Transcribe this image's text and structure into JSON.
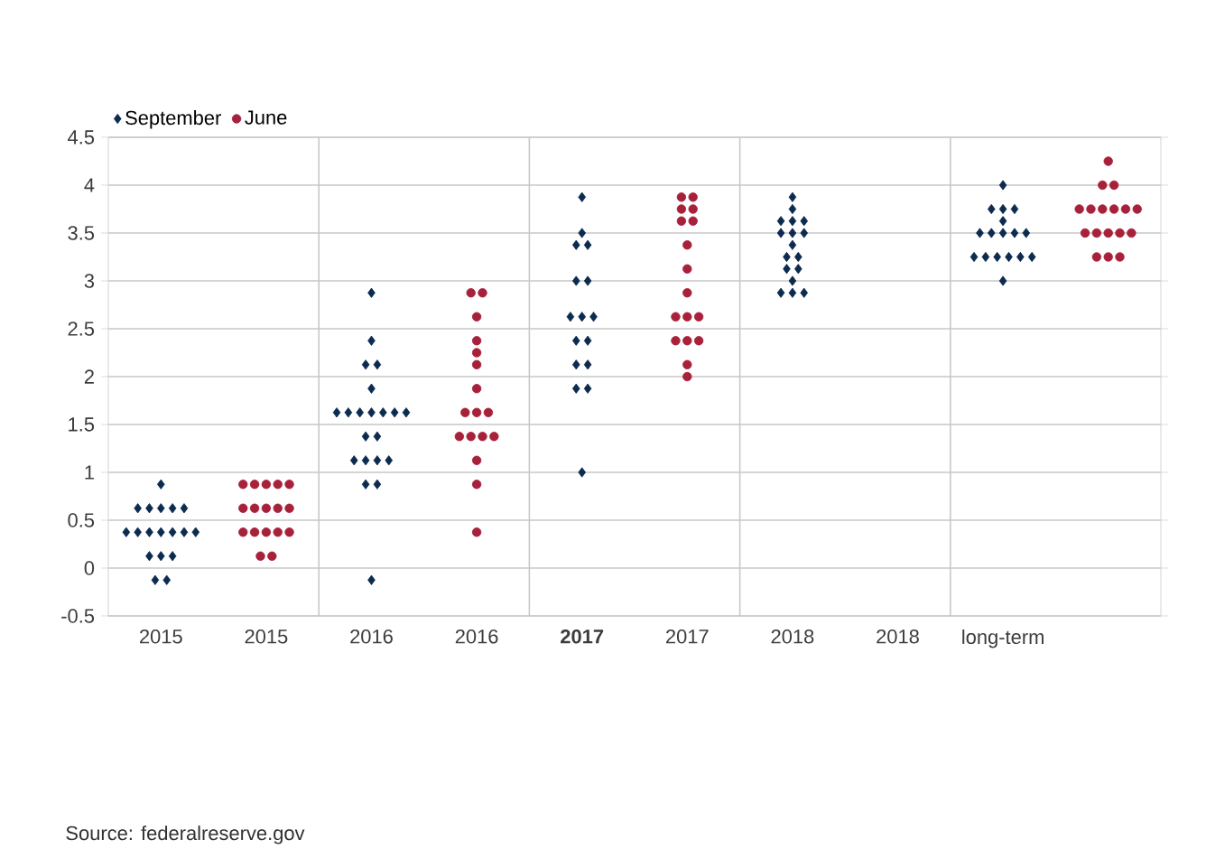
{
  "chart_data": {
    "type": "scatter",
    "categories": [
      "2015",
      "2015",
      "2016",
      "2016",
      "**2017**",
      "2017",
      "2018",
      "2018",
      "long-term",
      null
    ],
    "ylim": [
      -0.5,
      4.5
    ],
    "yticks": [
      -0.5,
      0,
      0.5,
      1,
      1.5,
      2,
      2.5,
      3,
      3.5,
      4,
      4.5
    ],
    "grid": "y",
    "legend": "top left",
    "annotations": [
      "Source: federalreserve.gov"
    ],
    "series": [
      {
        "name": "September",
        "color": "#0d2a4f",
        "marker": "diamond",
        "values": [
          0.875,
          null,
          2.875,
          null,
          3.875,
          null,
          3.875,
          null,
          4,
          null
        ]
      },
      {
        "color": "#0d2a4f",
        "marker": "diamond",
        "values": [
          0.625,
          null,
          2.375,
          null,
          3.5,
          null,
          3.75,
          null,
          3.75,
          null
        ]
      },
      {
        "color": "#0d2a4f",
        "marker": "diamond",
        "values": [
          0.625,
          null,
          2.125,
          null,
          3.375,
          null,
          3.625,
          null,
          3.75,
          null
        ]
      },
      {
        "color": "#0d2a4f",
        "marker": "diamond",
        "values": [
          0.625,
          null,
          2.125,
          null,
          3.375,
          null,
          3.625,
          null,
          3.75,
          null
        ]
      },
      {
        "color": "#0d2a4f",
        "marker": "diamond",
        "values": [
          0.625,
          null,
          1.875,
          null,
          3,
          null,
          3.625,
          null,
          3.625,
          null
        ]
      },
      {
        "color": "#0d2a4f",
        "marker": "diamond",
        "values": [
          0.625,
          null,
          1.625,
          null,
          3,
          null,
          3.5,
          null,
          3.5,
          null
        ]
      },
      {
        "color": "#0d2a4f",
        "marker": "diamond",
        "values": [
          0.375,
          null,
          1.625,
          null,
          2.625,
          null,
          3.5,
          null,
          3.5,
          null
        ]
      },
      {
        "color": "#0d2a4f",
        "marker": "diamond",
        "values": [
          0.375,
          null,
          1.625,
          null,
          2.625,
          null,
          3.5,
          null,
          3.5,
          null
        ]
      },
      {
        "color": "#0d2a4f",
        "marker": "diamond",
        "values": [
          0.375,
          null,
          1.625,
          null,
          2.625,
          null,
          3.375,
          null,
          3.5,
          null
        ]
      },
      {
        "color": "#0d2a4f",
        "marker": "diamond",
        "values": [
          0.375,
          null,
          1.625,
          null,
          2.375,
          null,
          3.25,
          null,
          3.5,
          null
        ]
      },
      {
        "color": "#0d2a4f",
        "marker": "diamond",
        "values": [
          0.375,
          null,
          1.625,
          null,
          2.375,
          null,
          3.25,
          null,
          3.25,
          null
        ]
      },
      {
        "color": "#0d2a4f",
        "marker": "diamond",
        "values": [
          0.375,
          null,
          1.625,
          null,
          2.125,
          null,
          3.125,
          null,
          3.25,
          null
        ]
      },
      {
        "color": "#0d2a4f",
        "marker": "diamond",
        "values": [
          0.375,
          null,
          1.375,
          null,
          2.125,
          null,
          3.125,
          null,
          3.25,
          null
        ]
      },
      {
        "color": "#0d2a4f",
        "marker": "diamond",
        "values": [
          0.125,
          null,
          1.375,
          null,
          1.875,
          null,
          3,
          null,
          3.25,
          null
        ]
      },
      {
        "color": "#0d2a4f",
        "marker": "diamond",
        "values": [
          0.125,
          null,
          1.125,
          null,
          1.875,
          null,
          2.875,
          null,
          3.25,
          null
        ]
      },
      {
        "color": "#0d2a4f",
        "marker": "diamond",
        "values": [
          0.125,
          null,
          1.125,
          null,
          1,
          null,
          2.875,
          null,
          3.25,
          null
        ]
      },
      {
        "color": "#0d2a4f",
        "marker": "diamond",
        "values": [
          -0.125,
          null,
          1.125,
          null,
          null,
          null,
          2.875,
          null,
          3,
          null
        ]
      },
      {
        "color": "#0d2a4f",
        "marker": "diamond",
        "values": [
          -0.125,
          null,
          1.125,
          null,
          null,
          null,
          null,
          null,
          null,
          null
        ]
      },
      {
        "color": "#0d2a4f",
        "marker": "diamond",
        "values": [
          null,
          null,
          0.875,
          null,
          null,
          null,
          null,
          null,
          null,
          null
        ]
      },
      {
        "color": "#0d2a4f",
        "marker": "diamond",
        "values": [
          null,
          null,
          0.875,
          null,
          null,
          null,
          null,
          null,
          null,
          null
        ]
      },
      {
        "color": "#0d2a4f",
        "marker": "diamond",
        "values": [
          null,
          null,
          -0.125,
          null,
          null,
          null,
          null,
          null,
          null,
          null
        ]
      },
      {
        "name": "June",
        "color": "#a8213a",
        "marker": "circle",
        "values": [
          null,
          0.875,
          null,
          2.875,
          null,
          3.875,
          null,
          null,
          null,
          4.25
        ]
      },
      {
        "color": "#a8213a",
        "marker": "circle",
        "values": [
          null,
          0.875,
          null,
          2.875,
          null,
          3.875,
          null,
          null,
          null,
          4
        ]
      },
      {
        "color": "#a8213a",
        "marker": "circle",
        "values": [
          null,
          0.875,
          null,
          2.625,
          null,
          3.75,
          null,
          null,
          null,
          4
        ]
      },
      {
        "color": "#a8213a",
        "marker": "circle",
        "values": [
          null,
          0.875,
          null,
          2.375,
          null,
          3.75,
          null,
          null,
          null,
          3.75
        ]
      },
      {
        "color": "#a8213a",
        "marker": "circle",
        "values": [
          null,
          0.875,
          null,
          2.25,
          null,
          3.625,
          null,
          null,
          null,
          3.75
        ]
      },
      {
        "color": "#a8213a",
        "marker": "circle",
        "values": [
          null,
          0.625,
          null,
          2.125,
          null,
          3.625,
          null,
          null,
          null,
          3.75
        ]
      },
      {
        "color": "#a8213a",
        "marker": "circle",
        "values": [
          null,
          0.625,
          null,
          1.875,
          null,
          3.375,
          null,
          null,
          null,
          3.75
        ]
      },
      {
        "color": "#a8213a",
        "marker": "circle",
        "values": [
          null,
          0.625,
          null,
          1.625,
          null,
          3.125,
          null,
          null,
          null,
          3.75
        ]
      },
      {
        "color": "#a8213a",
        "marker": "circle",
        "values": [
          null,
          0.625,
          null,
          1.625,
          null,
          2.875,
          null,
          null,
          null,
          3.75
        ]
      },
      {
        "color": "#a8213a",
        "marker": "circle",
        "values": [
          null,
          0.625,
          null,
          1.625,
          null,
          2.625,
          null,
          null,
          null,
          3.5
        ]
      },
      {
        "color": "#a8213a",
        "marker": "circle",
        "values": [
          null,
          0.375,
          null,
          1.375,
          null,
          2.625,
          null,
          null,
          null,
          3.5
        ]
      },
      {
        "color": "#a8213a",
        "marker": "circle",
        "values": [
          null,
          0.375,
          null,
          1.375,
          null,
          2.625,
          null,
          null,
          null,
          3.5
        ]
      },
      {
        "color": "#a8213a",
        "marker": "circle",
        "values": [
          null,
          0.375,
          null,
          1.375,
          null,
          2.375,
          null,
          null,
          null,
          3.5
        ]
      },
      {
        "color": "#a8213a",
        "marker": "circle",
        "values": [
          null,
          0.375,
          null,
          1.375,
          null,
          2.375,
          null,
          null,
          null,
          3.5
        ]
      },
      {
        "color": "#a8213a",
        "marker": "circle",
        "values": [
          null,
          0.375,
          null,
          1.125,
          null,
          2.375,
          null,
          null,
          null,
          3.25
        ]
      },
      {
        "color": "#a8213a",
        "marker": "circle",
        "values": [
          null,
          0.125,
          null,
          0.875,
          null,
          2.125,
          null,
          null,
          null,
          3.25
        ]
      },
      {
        "color": "#a8213a",
        "marker": "circle",
        "values": [
          null,
          0.125,
          null,
          0.375,
          null,
          2,
          null,
          null,
          null,
          3.25
        ]
      }
    ]
  }
}
